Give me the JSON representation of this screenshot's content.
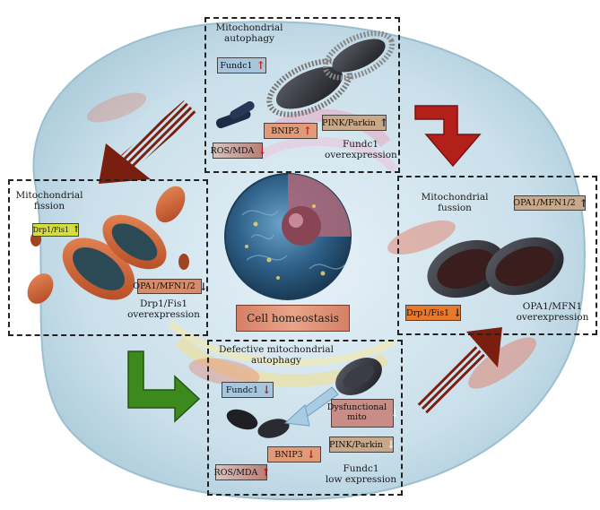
{
  "colors": {
    "up_red": "#c0201c",
    "down_red": "#b01c18",
    "big_red_arrow": "#b3201a",
    "green_arrow": "#3c8a1e",
    "striped_arrow": "#7a1e10",
    "light_arrow": "#a9cce3",
    "homeostasis_box": "#d9876a"
  },
  "panels": {
    "top": {
      "title": "Mitochondrial\nautophagy",
      "caption": "Fundc1\noverexpression",
      "tags": {
        "fundc1": {
          "label": "Fundc1",
          "arrow": "↑"
        },
        "bnip3": {
          "label": "BNIP3",
          "arrow": "↑"
        },
        "pink": {
          "label": "PINK/Parkin",
          "arrow": "↑"
        },
        "ros": {
          "label": "ROS/MDA",
          "arrow": "↓"
        }
      }
    },
    "left": {
      "title": "Mitochondrial\nfission",
      "caption": "Drp1/Fis1\noverexpression",
      "tags": {
        "drp1": {
          "label": "Drp1/Fis1",
          "arrow": "↑"
        },
        "opa1": {
          "label": "OPA1/MFN1/2",
          "arrow": "↓"
        }
      }
    },
    "right": {
      "title": "Mitochondrial\nfussion",
      "caption": "OPA1/MFN1\noverexpression",
      "tags": {
        "opa1": {
          "label": "OPA1/MFN1/2",
          "arrow": "↑"
        },
        "drp1": {
          "label": "Drp1/Fis1",
          "arrow": "↓"
        }
      }
    },
    "bottom": {
      "title": "Defective mitochondrial\nautophagy",
      "caption": "Fundc1\nlow expression",
      "tags": {
        "fundc1": {
          "label": "Fundc1",
          "arrow": "↓"
        },
        "dysfunctional": {
          "label": "Dysfunctional\nmito",
          "arrow": "↓"
        },
        "pink": {
          "label": "PINK/Parkin",
          "arrow": "↓"
        },
        "bnip3": {
          "label": "BNIP3",
          "arrow": "↓"
        },
        "ros": {
          "label": "ROS/MDA",
          "arrow": "↑"
        }
      }
    }
  },
  "center": {
    "homeostasis_label": "Cell homeostasis"
  }
}
